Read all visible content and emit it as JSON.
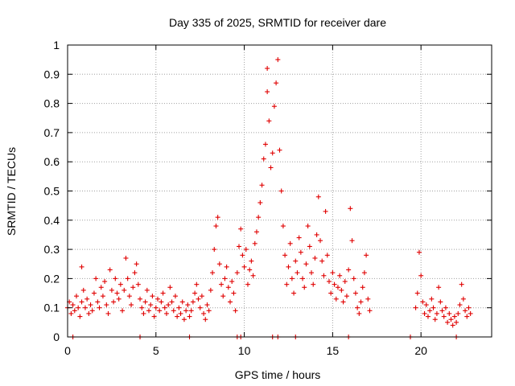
{
  "chart_data": {
    "type": "scatter",
    "title": "Day 335 of 2025, SRMTID for receiver dare",
    "xlabel": "GPS time / hours",
    "ylabel": "SRMTID / TECUs",
    "xlim": [
      0,
      24
    ],
    "ylim": [
      0,
      1
    ],
    "xticks": [
      "0",
      "5",
      "10",
      "15",
      "20"
    ],
    "xtick_values": [
      0,
      5,
      10,
      15,
      20
    ],
    "yticks": [
      "0",
      "0.1",
      "0.2",
      "0.3",
      "0.4",
      "0.5",
      "0.6",
      "0.7",
      "0.8",
      "0.9",
      "1"
    ],
    "ytick_values": [
      0,
      0.1,
      0.2,
      0.3,
      0.4,
      0.5,
      0.6,
      0.7,
      0.8,
      0.9,
      1
    ],
    "grid": true,
    "marker": "+",
    "color": "#e00000",
    "series": [
      {
        "name": "SRMTID",
        "points": [
          [
            0.0,
            0.1
          ],
          [
            0.1,
            0.12
          ],
          [
            0.2,
            0.08
          ],
          [
            0.3,
            0.11
          ],
          [
            0.4,
            0.09
          ],
          [
            0.5,
            0.14
          ],
          [
            0.6,
            0.1
          ],
          [
            0.7,
            0.07
          ],
          [
            0.8,
            0.12
          ],
          [
            0.8,
            0.24
          ],
          [
            0.9,
            0.16
          ],
          [
            1.0,
            0.1
          ],
          [
            1.1,
            0.13
          ],
          [
            1.2,
            0.08
          ],
          [
            1.3,
            0.11
          ],
          [
            1.4,
            0.09
          ],
          [
            1.5,
            0.15
          ],
          [
            1.6,
            0.2
          ],
          [
            1.7,
            0.12
          ],
          [
            1.8,
            0.1
          ],
          [
            1.9,
            0.17
          ],
          [
            2.0,
            0.14
          ],
          [
            2.1,
            0.19
          ],
          [
            2.2,
            0.11
          ],
          [
            2.3,
            0.08
          ],
          [
            2.4,
            0.23
          ],
          [
            2.5,
            0.16
          ],
          [
            2.6,
            0.12
          ],
          [
            2.7,
            0.2
          ],
          [
            2.8,
            0.15
          ],
          [
            2.9,
            0.13
          ],
          [
            3.0,
            0.18
          ],
          [
            3.1,
            0.09
          ],
          [
            3.2,
            0.16
          ],
          [
            3.3,
            0.27
          ],
          [
            3.4,
            0.2
          ],
          [
            3.5,
            0.14
          ],
          [
            3.6,
            0.11
          ],
          [
            3.7,
            0.17
          ],
          [
            3.8,
            0.22
          ],
          [
            3.9,
            0.25
          ],
          [
            4.0,
            0.18
          ],
          [
            4.1,
            0.13
          ],
          [
            4.2,
            0.1
          ],
          [
            4.3,
            0.08
          ],
          [
            4.4,
            0.12
          ],
          [
            4.5,
            0.16
          ],
          [
            4.6,
            0.09
          ],
          [
            4.7,
            0.11
          ],
          [
            4.8,
            0.14
          ],
          [
            4.9,
            0.07
          ],
          [
            5.0,
            0.1
          ],
          [
            5.1,
            0.13
          ],
          [
            5.2,
            0.09
          ],
          [
            5.3,
            0.12
          ],
          [
            5.4,
            0.15
          ],
          [
            5.5,
            0.1
          ],
          [
            5.6,
            0.08
          ],
          [
            5.7,
            0.11
          ],
          [
            5.8,
            0.17
          ],
          [
            5.9,
            0.12
          ],
          [
            6.0,
            0.09
          ],
          [
            6.1,
            0.14
          ],
          [
            6.2,
            0.07
          ],
          [
            6.3,
            0.1
          ],
          [
            6.4,
            0.08
          ],
          [
            6.5,
            0.12
          ],
          [
            6.6,
            0.06
          ],
          [
            6.7,
            0.09
          ],
          [
            6.8,
            0.11
          ],
          [
            6.9,
            0.07
          ],
          [
            7.0,
            0.09
          ],
          [
            7.1,
            0.12
          ],
          [
            7.2,
            0.15
          ],
          [
            7.3,
            0.18
          ],
          [
            7.4,
            0.13
          ],
          [
            7.5,
            0.1
          ],
          [
            7.6,
            0.14
          ],
          [
            7.7,
            0.08
          ],
          [
            7.8,
            0.06
          ],
          [
            7.9,
            0.11
          ],
          [
            8.0,
            0.09
          ],
          [
            8.1,
            0.16
          ],
          [
            8.2,
            0.22
          ],
          [
            8.3,
            0.3
          ],
          [
            8.4,
            0.38
          ],
          [
            8.5,
            0.41
          ],
          [
            8.6,
            0.25
          ],
          [
            8.7,
            0.18
          ],
          [
            8.8,
            0.14
          ],
          [
            8.9,
            0.2
          ],
          [
            9.0,
            0.24
          ],
          [
            9.1,
            0.17
          ],
          [
            9.2,
            0.12
          ],
          [
            9.3,
            0.19
          ],
          [
            9.4,
            0.15
          ],
          [
            9.5,
            0.09
          ],
          [
            9.6,
            0.22
          ],
          [
            9.7,
            0.31
          ],
          [
            9.8,
            0.37
          ],
          [
            9.9,
            0.28
          ],
          [
            10.0,
            0.24
          ],
          [
            10.1,
            0.3
          ],
          [
            10.2,
            0.18
          ],
          [
            10.3,
            0.23
          ],
          [
            10.4,
            0.26
          ],
          [
            10.5,
            0.21
          ],
          [
            10.6,
            0.32
          ],
          [
            10.7,
            0.36
          ],
          [
            10.8,
            0.41
          ],
          [
            10.9,
            0.46
          ],
          [
            11.0,
            0.52
          ],
          [
            11.1,
            0.61
          ],
          [
            11.2,
            0.66
          ],
          [
            11.3,
            0.84
          ],
          [
            11.3,
            0.92
          ],
          [
            11.4,
            0.74
          ],
          [
            11.5,
            0.58
          ],
          [
            11.6,
            0.63
          ],
          [
            11.7,
            0.79
          ],
          [
            11.8,
            0.87
          ],
          [
            11.9,
            0.95
          ],
          [
            12.0,
            0.64
          ],
          [
            12.1,
            0.5
          ],
          [
            12.2,
            0.38
          ],
          [
            12.3,
            0.28
          ],
          [
            12.4,
            0.18
          ],
          [
            12.5,
            0.24
          ],
          [
            12.6,
            0.32
          ],
          [
            12.7,
            0.2
          ],
          [
            12.8,
            0.15
          ],
          [
            12.9,
            0.26
          ],
          [
            13.0,
            0.22
          ],
          [
            13.1,
            0.34
          ],
          [
            13.2,
            0.29
          ],
          [
            13.3,
            0.2
          ],
          [
            13.4,
            0.17
          ],
          [
            13.5,
            0.25
          ],
          [
            13.6,
            0.38
          ],
          [
            13.7,
            0.31
          ],
          [
            13.8,
            0.22
          ],
          [
            13.9,
            0.18
          ],
          [
            14.0,
            0.27
          ],
          [
            14.1,
            0.35
          ],
          [
            14.2,
            0.48
          ],
          [
            14.3,
            0.33
          ],
          [
            14.4,
            0.26
          ],
          [
            14.5,
            0.21
          ],
          [
            14.6,
            0.43
          ],
          [
            14.7,
            0.28
          ],
          [
            14.8,
            0.19
          ],
          [
            14.9,
            0.15
          ],
          [
            15.0,
            0.22
          ],
          [
            15.1,
            0.18
          ],
          [
            15.2,
            0.13
          ],
          [
            15.3,
            0.17
          ],
          [
            15.4,
            0.21
          ],
          [
            15.5,
            0.16
          ],
          [
            15.6,
            0.12
          ],
          [
            15.7,
            0.19
          ],
          [
            15.8,
            0.14
          ],
          [
            15.9,
            0.23
          ],
          [
            16.0,
            0.44
          ],
          [
            16.1,
            0.33
          ],
          [
            16.2,
            0.2
          ],
          [
            16.3,
            0.15
          ],
          [
            16.4,
            0.1
          ],
          [
            16.5,
            0.08
          ],
          [
            16.6,
            0.12
          ],
          [
            16.7,
            0.17
          ],
          [
            16.8,
            0.22
          ],
          [
            16.9,
            0.28
          ],
          [
            17.0,
            0.13
          ],
          [
            17.1,
            0.09
          ],
          [
            19.7,
            0.1
          ],
          [
            19.8,
            0.15
          ],
          [
            19.9,
            0.29
          ],
          [
            20.0,
            0.21
          ],
          [
            20.1,
            0.12
          ],
          [
            20.2,
            0.08
          ],
          [
            20.3,
            0.11
          ],
          [
            20.4,
            0.07
          ],
          [
            20.5,
            0.09
          ],
          [
            20.6,
            0.13
          ],
          [
            20.7,
            0.1
          ],
          [
            20.8,
            0.06
          ],
          [
            20.9,
            0.08
          ],
          [
            21.0,
            0.17
          ],
          [
            21.1,
            0.12
          ],
          [
            21.2,
            0.09
          ],
          [
            21.3,
            0.07
          ],
          [
            21.4,
            0.1
          ],
          [
            21.5,
            0.05
          ],
          [
            21.6,
            0.08
          ],
          [
            21.7,
            0.06
          ],
          [
            21.8,
            0.04
          ],
          [
            21.9,
            0.07
          ],
          [
            22.0,
            0.05
          ],
          [
            22.1,
            0.08
          ],
          [
            22.2,
            0.11
          ],
          [
            22.3,
            0.18
          ],
          [
            22.4,
            0.13
          ],
          [
            22.5,
            0.09
          ],
          [
            22.6,
            0.07
          ],
          [
            22.7,
            0.1
          ],
          [
            22.8,
            0.08
          ]
        ],
        "zero_markers": [
          0.3,
          4.1,
          6.9,
          9.6,
          9.8,
          11.6,
          11.9,
          12.9,
          15.9,
          19.4,
          22.0
        ]
      }
    ]
  }
}
